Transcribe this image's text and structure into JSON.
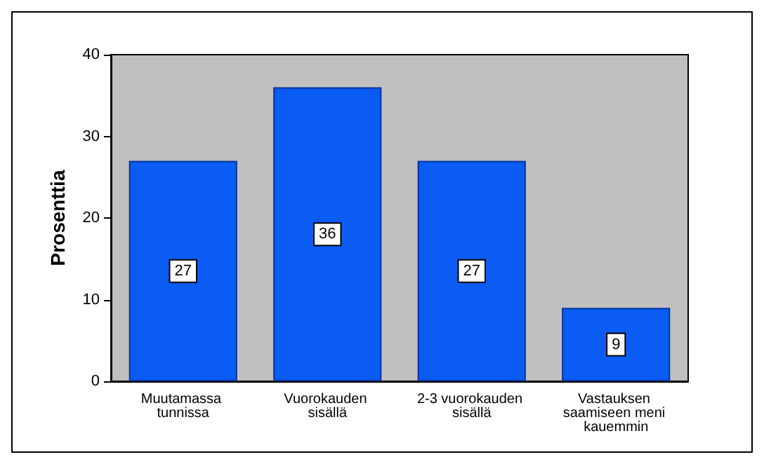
{
  "chart_data": {
    "type": "bar",
    "ylabel": "Prosenttia",
    "categories": [
      "Muutamassa tunnissa",
      "Vuorokauden sisällä",
      "2-3 vuorokauden sisällä",
      "Vastauksen saamiseen meni kauemmin"
    ],
    "values": [
      27,
      36,
      27,
      9
    ],
    "color": "#0a5cf5",
    "data_labels": true,
    "ylim": [
      0,
      40
    ],
    "yticks": [
      0,
      10,
      20,
      30,
      40
    ]
  }
}
